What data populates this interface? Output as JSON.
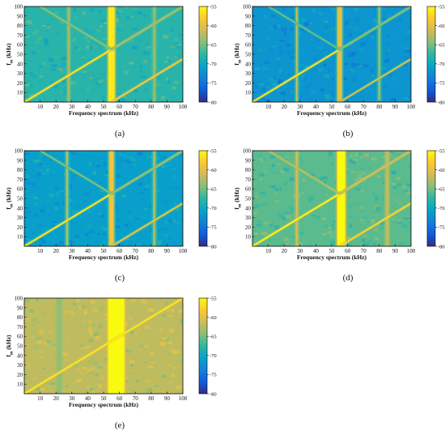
{
  "colors": {
    "colormap": [
      "#352a87",
      "#0f5cdd",
      "#1481d6",
      "#06a4ca",
      "#2eb7a4",
      "#87bf77",
      "#d1bb59",
      "#fec832",
      "#f9fb0e"
    ],
    "mark": "#f9fb0e",
    "frame": "#000000",
    "background": "#ffffff"
  },
  "chart_data": [
    {
      "type": "heatmap",
      "panel_label": "(a)",
      "xlabel": "Frequency spectrum (kHz)",
      "ylabel": "f_m (kHz)",
      "ylabel_main": "f",
      "ylabel_sub": "m",
      "ylabel_unit": "(kHz)",
      "xlim": [
        0,
        100
      ],
      "ylim": [
        0,
        100
      ],
      "xticks": [
        10,
        20,
        30,
        40,
        50,
        60,
        70,
        80,
        90,
        100
      ],
      "yticks": [
        10,
        20,
        30,
        40,
        50,
        60,
        70,
        80,
        90,
        100
      ],
      "colorbar": {
        "ticks": [
          -55,
          -60,
          -65,
          -70,
          -75,
          -80
        ],
        "range": [
          -80,
          -55
        ]
      },
      "background_level": -68,
      "vertical_bands": [
        {
          "x": 55,
          "width": 4,
          "value": -56
        },
        {
          "x": 28,
          "width": 1.2,
          "value": -63
        },
        {
          "x": 82,
          "width": 1.5,
          "value": -64
        }
      ],
      "lines": [
        {
          "from": [
            0,
            0
          ],
          "to": [
            100,
            100
          ],
          "value": -56
        },
        {
          "from": [
            55,
            0
          ],
          "to": [
            100,
            45
          ],
          "value": -58
        },
        {
          "from": [
            10,
            100
          ],
          "to": [
            55,
            55
          ],
          "value": -64
        },
        {
          "from": [
            55,
            55
          ],
          "to": [
            100,
            100
          ],
          "value": -63
        }
      ]
    },
    {
      "type": "heatmap",
      "panel_label": "(b)",
      "xlabel": "Frequency spectrum (kHz)",
      "ylabel": "f_m (kHz)",
      "ylabel_main": "f",
      "ylabel_sub": "m",
      "ylabel_unit": "(kHz)",
      "xlim": [
        0,
        100
      ],
      "ylim": [
        0,
        100
      ],
      "xticks": [
        10,
        20,
        30,
        40,
        50,
        60,
        70,
        80,
        90,
        100
      ],
      "yticks": [
        10,
        20,
        30,
        40,
        50,
        60,
        70,
        80,
        90,
        100
      ],
      "colorbar": {
        "ticks": [
          -55,
          -60,
          -65,
          -70,
          -75,
          -80
        ],
        "range": [
          -80,
          -55
        ]
      },
      "background_level": -72,
      "vertical_bands": [
        {
          "x": 55,
          "width": 3,
          "value": -60
        },
        {
          "x": 28,
          "width": 1.2,
          "value": -62
        },
        {
          "x": 80,
          "width": 1.5,
          "value": -64
        }
      ],
      "lines": [
        {
          "from": [
            0,
            0
          ],
          "to": [
            100,
            100
          ],
          "value": -56
        },
        {
          "from": [
            55,
            0
          ],
          "to": [
            100,
            45
          ],
          "value": -60
        },
        {
          "from": [
            10,
            100
          ],
          "to": [
            55,
            55
          ],
          "value": -65
        },
        {
          "from": [
            55,
            55
          ],
          "to": [
            100,
            100
          ],
          "value": -64
        }
      ]
    },
    {
      "type": "heatmap",
      "panel_label": "(c)",
      "xlabel": "Frequency spectrum (kHz)",
      "ylabel": "f_m (kHz)",
      "ylabel_main": "f",
      "ylabel_sub": "m",
      "ylabel_unit": "(kHz)",
      "xlim": [
        0,
        100
      ],
      "ylim": [
        0,
        100
      ],
      "xticks": [
        10,
        20,
        30,
        40,
        50,
        60,
        70,
        80,
        90,
        100
      ],
      "yticks": [
        10,
        20,
        30,
        40,
        50,
        60,
        70,
        80,
        90,
        100
      ],
      "colorbar": {
        "ticks": [
          -55,
          -60,
          -65,
          -70,
          -75,
          -80
        ],
        "range": [
          -80,
          -55
        ]
      },
      "background_level": -71,
      "vertical_bands": [
        {
          "x": 55,
          "width": 3,
          "value": -59
        },
        {
          "x": 27,
          "width": 1.2,
          "value": -62
        },
        {
          "x": 82,
          "width": 1.5,
          "value": -63
        }
      ],
      "lines": [
        {
          "from": [
            0,
            0
          ],
          "to": [
            100,
            100
          ],
          "value": -56
        },
        {
          "from": [
            55,
            0
          ],
          "to": [
            100,
            45
          ],
          "value": -59
        },
        {
          "from": [
            10,
            100
          ],
          "to": [
            55,
            55
          ],
          "value": -64
        },
        {
          "from": [
            55,
            55
          ],
          "to": [
            100,
            100
          ],
          "value": -63
        }
      ]
    },
    {
      "type": "heatmap",
      "panel_label": "(d)",
      "xlabel": "Frequency spectrum (kHz)",
      "ylabel": "f_m (kHz)",
      "ylabel_main": "f",
      "ylabel_sub": "m",
      "ylabel_unit": "(kHz)",
      "xlim": [
        0,
        100
      ],
      "ylim": [
        0,
        100
      ],
      "xticks": [
        10,
        20,
        30,
        40,
        50,
        60,
        70,
        80,
        90,
        100
      ],
      "yticks": [
        10,
        20,
        30,
        40,
        50,
        60,
        70,
        80,
        90,
        100
      ],
      "colorbar": {
        "ticks": [
          -55,
          -60,
          -65,
          -70,
          -75,
          -80
        ],
        "range": [
          -80,
          -55
        ]
      },
      "background_level": -66,
      "vertical_bands": [
        {
          "x": 56,
          "width": 5,
          "value": -55
        },
        {
          "x": 28,
          "width": 1.2,
          "value": -61
        },
        {
          "x": 85,
          "width": 2,
          "value": -62
        }
      ],
      "lines": [
        {
          "from": [
            0,
            0
          ],
          "to": [
            100,
            100
          ],
          "value": -55
        },
        {
          "from": [
            55,
            0
          ],
          "to": [
            100,
            45
          ],
          "value": -57
        },
        {
          "from": [
            10,
            100
          ],
          "to": [
            55,
            55
          ],
          "value": -62
        },
        {
          "from": [
            55,
            55
          ],
          "to": [
            100,
            100
          ],
          "value": -61
        }
      ]
    },
    {
      "type": "heatmap",
      "panel_label": "(e)",
      "xlabel": "Frequency spectrum (kHz)",
      "ylabel": "f_m (kHz)",
      "ylabel_main": "f",
      "ylabel_sub": "m",
      "ylabel_unit": "(kHz)",
      "xlim": [
        0,
        100
      ],
      "ylim": [
        0,
        100
      ],
      "xticks": [
        10,
        20,
        30,
        40,
        50,
        60,
        70,
        80,
        90,
        100
      ],
      "yticks": [
        10,
        20,
        30,
        40,
        50,
        60,
        70,
        80,
        90,
        100
      ],
      "colorbar": {
        "ticks": [
          -55,
          -60,
          -65,
          -70,
          -75,
          -80
        ],
        "range": [
          -80,
          -55
        ]
      },
      "background_level": -62,
      "vertical_bands": [
        {
          "x": 58,
          "width": 10,
          "value": -55
        },
        {
          "x": 22,
          "width": 3,
          "value": -64
        }
      ],
      "lines": [
        {
          "from": [
            0,
            0
          ],
          "to": [
            100,
            100
          ],
          "value": -56
        }
      ]
    }
  ]
}
